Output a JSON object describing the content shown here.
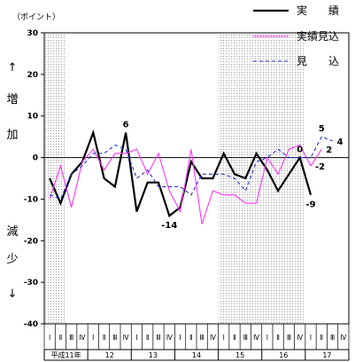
{
  "chart_data": {
    "type": "line",
    "unit_label": "（ポイント）",
    "ylabel": [
      "↑",
      "増",
      "加",
      "減",
      "少",
      "↓"
    ],
    "ylim": [
      -40,
      30
    ],
    "yticks": [
      30,
      20,
      10,
      0,
      -10,
      -20,
      -30,
      -40
    ],
    "quarter_labels": [
      "Ⅰ",
      "Ⅱ",
      "Ⅲ",
      "Ⅳ"
    ],
    "year_labels": [
      "平成11年",
      "12",
      "13",
      "14",
      "15",
      "16",
      "17"
    ],
    "shaded_periods": [
      [
        0,
        1
      ],
      [
        16,
        23
      ]
    ],
    "series": [
      {
        "name": "実　　績",
        "color": "#000000",
        "dash": "",
        "width": 2.2,
        "values": [
          -5,
          -11,
          -4,
          -1,
          6,
          -5,
          -7,
          6,
          -13,
          -6,
          -6,
          -14,
          -12,
          -1,
          -5,
          -5,
          1,
          -4,
          -5,
          1,
          -3,
          -8,
          -4,
          0,
          -9,
          null,
          null,
          null
        ]
      },
      {
        "name": "実績見込",
        "color": "#ff33ff",
        "dash": "",
        "width": 1.1,
        "values": [
          -10,
          -2,
          -12,
          -1,
          2,
          -3,
          1,
          1,
          2,
          -4,
          1,
          -8,
          -13,
          2,
          -16,
          -8,
          -9,
          -9,
          -11,
          -11,
          0,
          -4,
          2,
          3,
          -2,
          2,
          null,
          null
        ]
      },
      {
        "name": "見　　込",
        "color": "#2233cc",
        "dash": "4,3",
        "width": 1.1,
        "values": [
          -9,
          -10,
          -4,
          -2,
          1,
          1,
          3,
          2,
          -5,
          -3,
          -7,
          -7,
          -7,
          -9,
          -4,
          -4,
          -4,
          -5,
          -8,
          -1,
          0,
          2,
          0,
          0,
          0,
          5,
          4,
          null
        ]
      }
    ],
    "annotations": [
      {
        "text": "6",
        "series": 0,
        "index": 7,
        "pos": "above"
      },
      {
        "text": "-14",
        "series": 0,
        "index": 11,
        "pos": "below"
      },
      {
        "text": "0",
        "series": 0,
        "index": 23,
        "pos": "above"
      },
      {
        "text": "-9",
        "series": 0,
        "index": 24,
        "pos": "below"
      },
      {
        "text": "-2",
        "series": 1,
        "index": 24,
        "pos": "right"
      },
      {
        "text": "2",
        "series": 1,
        "index": 25,
        "pos": "right"
      },
      {
        "text": "5",
        "series": 2,
        "index": 25,
        "pos": "above"
      },
      {
        "text": "4",
        "series": 2,
        "index": 26,
        "pos": "right"
      }
    ],
    "legend_position": "top-right",
    "grid": false
  }
}
